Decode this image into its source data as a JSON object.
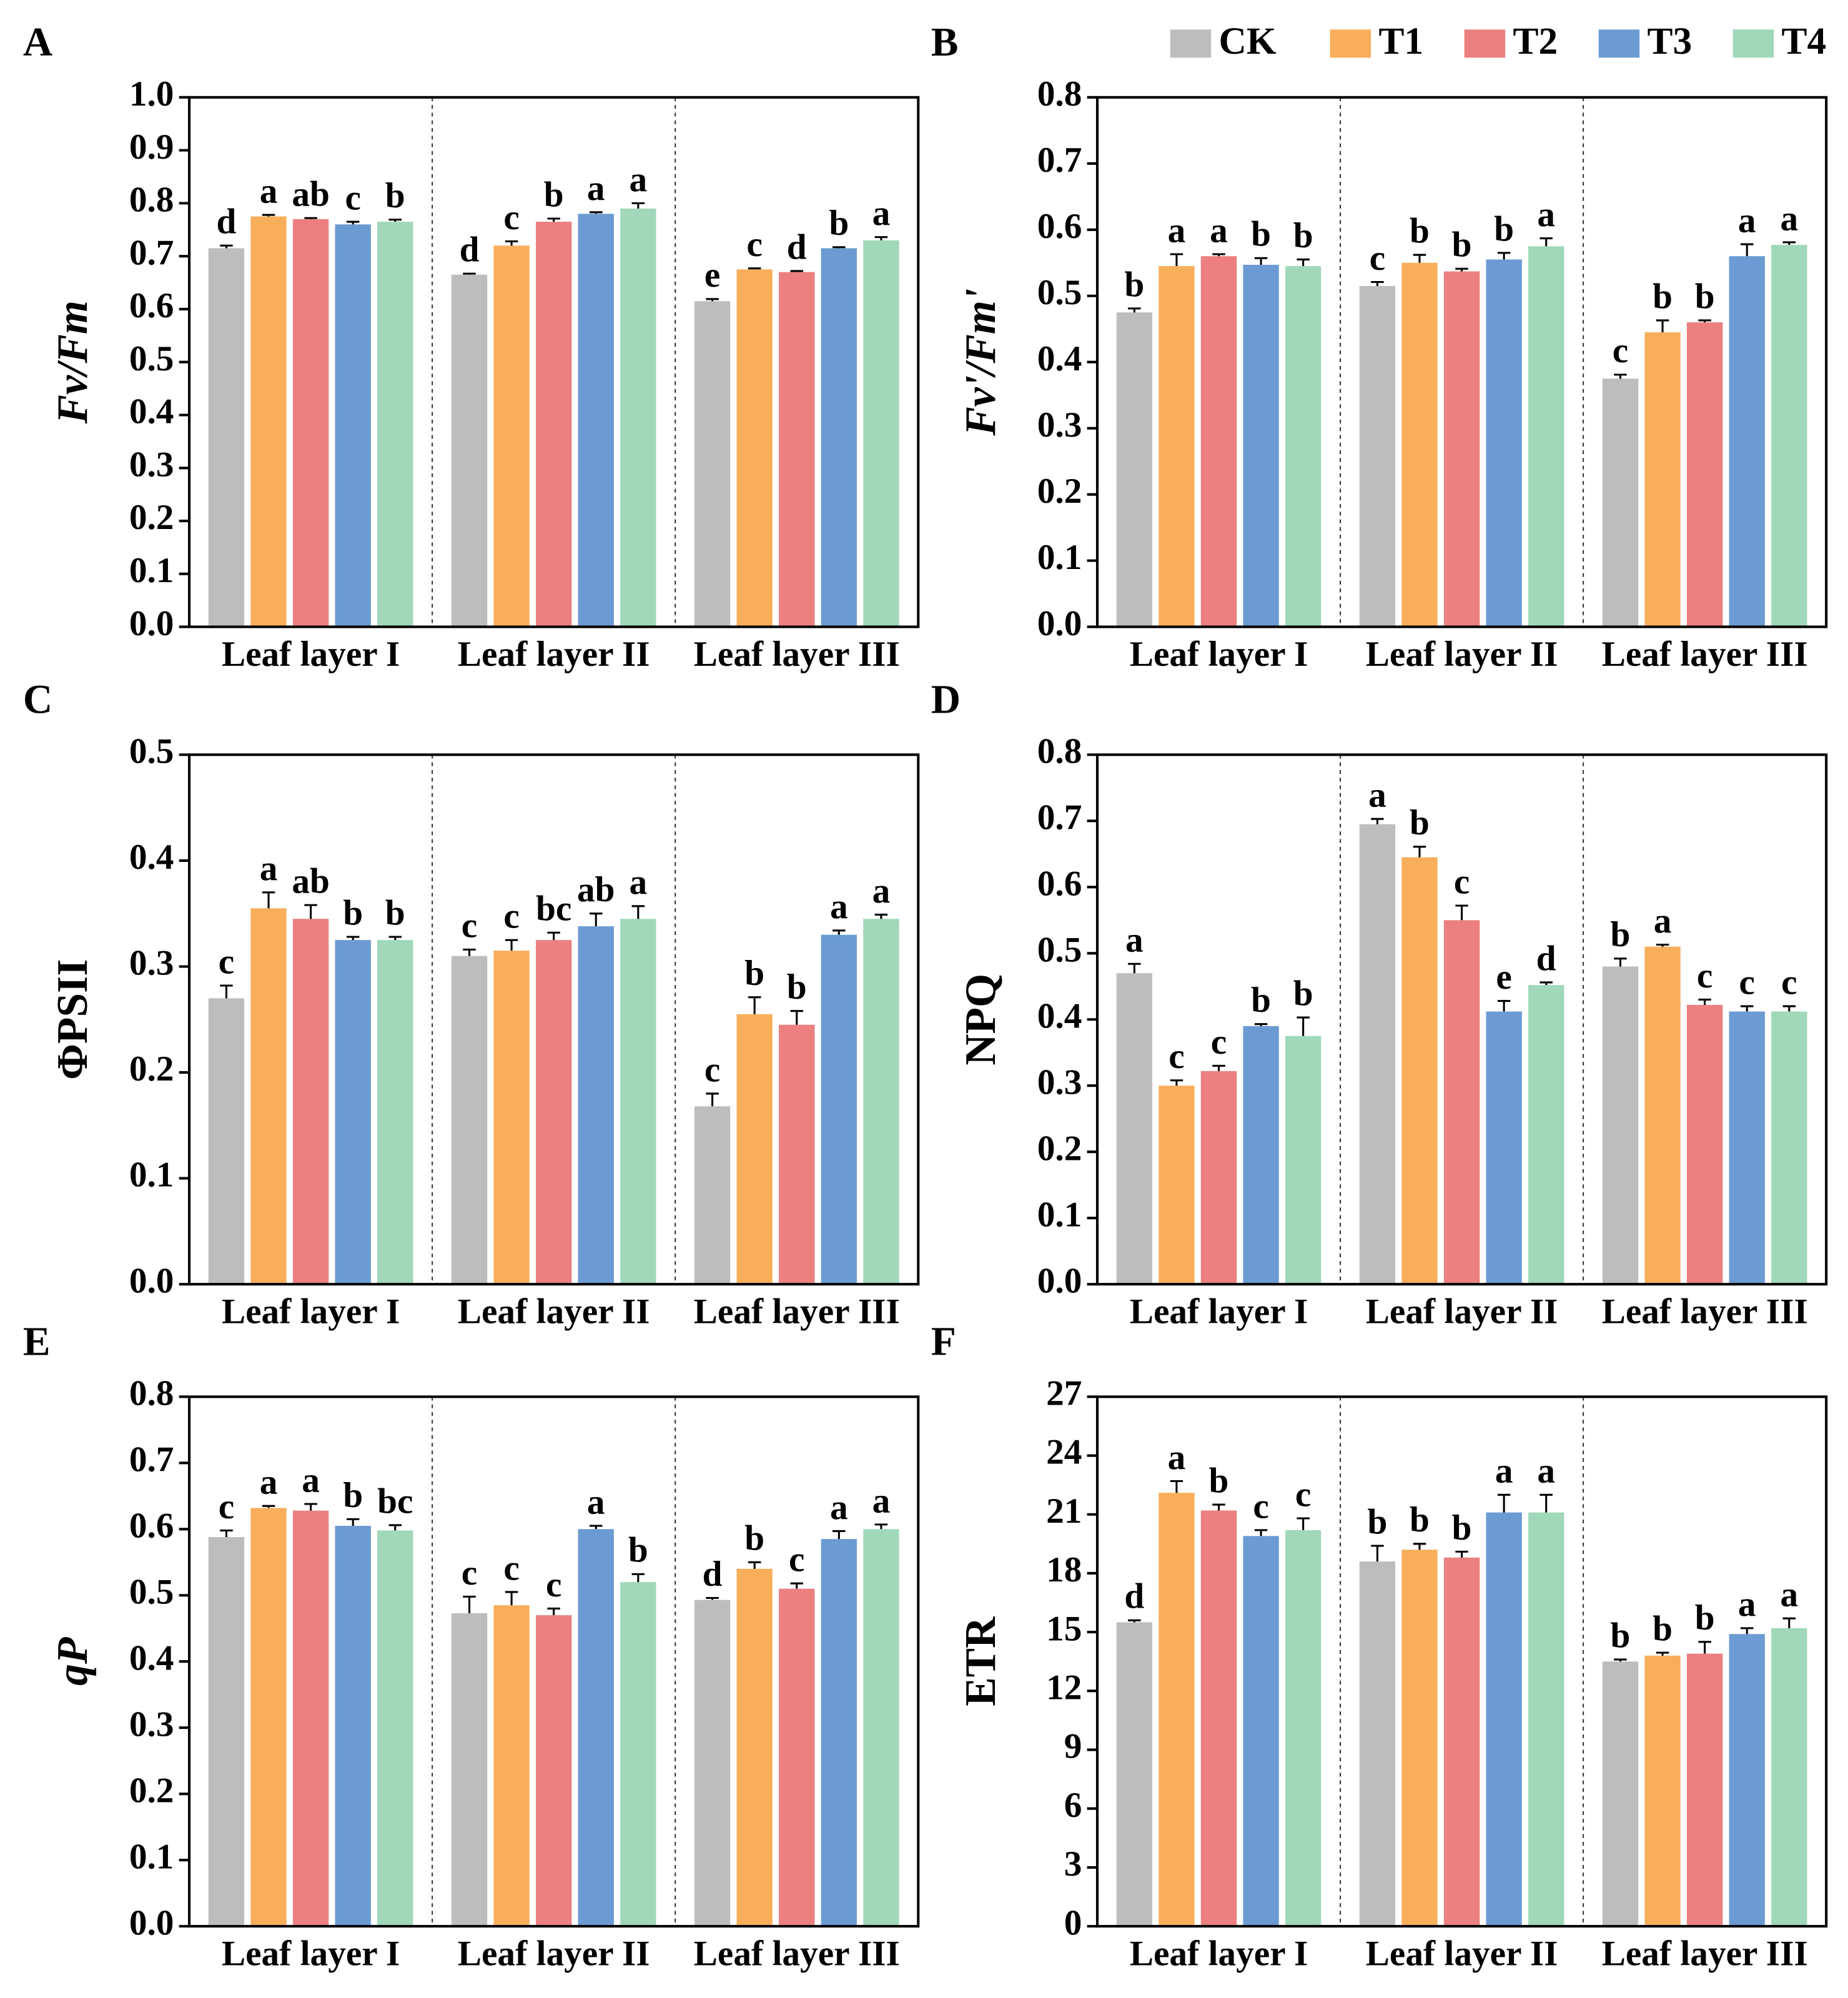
{
  "chart_data": [
    {
      "type": "bar",
      "panel": "A",
      "ylabel": "Fv/Fm",
      "ylabel_italic": true,
      "categories": [
        "Leaf layer I",
        "Leaf layer II",
        "Leaf layer III"
      ],
      "ylim": [
        0,
        1
      ],
      "yticks": [
        {
          "value": 0,
          "label": "0.0"
        },
        0.1,
        0.2,
        0.3,
        0.4,
        0.5,
        0.6,
        0.7,
        0.8,
        0.9,
        {
          "value": 1,
          "label": "1.0"
        }
      ],
      "series": [
        {
          "name": "CK",
          "color": "#bdbdbd",
          "values": [
            0.715,
            0.665,
            0.615
          ],
          "errors": [
            0.005,
            0.002,
            0.004
          ],
          "letters": [
            "d",
            "d",
            "e"
          ]
        },
        {
          "name": "T1",
          "color": "#f8ae5a",
          "values": [
            0.775,
            0.72,
            0.675
          ],
          "errors": [
            0.003,
            0.008,
            0.002
          ],
          "letters": [
            "a",
            "c",
            "c"
          ]
        },
        {
          "name": "T2",
          "color": "#ec7f7f",
          "values": [
            0.77,
            0.765,
            0.67
          ],
          "errors": [
            0.002,
            0.006,
            0.002
          ],
          "letters": [
            "ab",
            "b",
            "d"
          ]
        },
        {
          "name": "T3",
          "color": "#6b9bd2",
          "values": [
            0.76,
            0.78,
            0.715
          ],
          "errors": [
            0.005,
            0.003,
            0.002
          ],
          "letters": [
            "c",
            "a",
            "b"
          ]
        },
        {
          "name": "T4",
          "color": "#a0d8b9",
          "values": [
            0.765,
            0.79,
            0.73
          ],
          "errors": [
            0.004,
            0.01,
            0.006
          ],
          "letters": [
            "b",
            "a",
            "a"
          ]
        }
      ]
    },
    {
      "type": "bar",
      "panel": "B",
      "ylabel": "Fv'/Fm'",
      "ylabel_italic": true,
      "categories": [
        "Leaf layer I",
        "Leaf layer II",
        "Leaf layer III"
      ],
      "ylim": [
        0,
        0.8
      ],
      "yticks": [
        {
          "value": 0,
          "label": "0.0"
        },
        0.1,
        0.2,
        0.3,
        0.4,
        0.5,
        0.6,
        0.7,
        0.8
      ],
      "series": [
        {
          "name": "CK",
          "color": "#bdbdbd",
          "values": [
            0.475,
            0.515,
            0.375
          ],
          "errors": [
            0.006,
            0.006,
            0.006
          ],
          "letters": [
            "b",
            "c",
            "c"
          ]
        },
        {
          "name": "T1",
          "color": "#f8ae5a",
          "values": [
            0.545,
            0.55,
            0.445
          ],
          "errors": [
            0.018,
            0.012,
            0.018
          ],
          "letters": [
            "a",
            "b",
            "b"
          ]
        },
        {
          "name": "T2",
          "color": "#ec7f7f",
          "values": [
            0.56,
            0.537,
            0.46
          ],
          "errors": [
            0.003,
            0.004,
            0.003
          ],
          "letters": [
            "a",
            "b",
            "b"
          ]
        },
        {
          "name": "T3",
          "color": "#6b9bd2",
          "values": [
            0.547,
            0.555,
            0.56
          ],
          "errors": [
            0.01,
            0.01,
            0.018
          ],
          "letters": [
            "b",
            "b",
            "a"
          ]
        },
        {
          "name": "T4",
          "color": "#a0d8b9",
          "values": [
            0.545,
            0.575,
            0.577
          ],
          "errors": [
            0.01,
            0.012,
            0.004
          ],
          "letters": [
            "b",
            "a",
            "a"
          ]
        }
      ]
    },
    {
      "type": "bar",
      "panel": "C",
      "ylabel": "ΦPSII",
      "ylabel_italic": false,
      "categories": [
        "Leaf layer I",
        "Leaf layer II",
        "Leaf layer III"
      ],
      "ylim": [
        0,
        0.5
      ],
      "yticks": [
        {
          "value": 0,
          "label": "0.0"
        },
        0.1,
        0.2,
        0.3,
        0.4,
        0.5
      ],
      "series": [
        {
          "name": "CK",
          "color": "#bdbdbd",
          "values": [
            0.27,
            0.31,
            0.168
          ],
          "errors": [
            0.012,
            0.006,
            0.012
          ],
          "letters": [
            "c",
            "c",
            "c"
          ]
        },
        {
          "name": "T1",
          "color": "#f8ae5a",
          "values": [
            0.355,
            0.315,
            0.255
          ],
          "errors": [
            0.015,
            0.01,
            0.016
          ],
          "letters": [
            "a",
            "c",
            "b"
          ]
        },
        {
          "name": "T2",
          "color": "#ec7f7f",
          "values": [
            0.345,
            0.325,
            0.245
          ],
          "errors": [
            0.013,
            0.007,
            0.013
          ],
          "letters": [
            "ab",
            "bc",
            "b"
          ]
        },
        {
          "name": "T3",
          "color": "#6b9bd2",
          "values": [
            0.325,
            0.338,
            0.33
          ],
          "errors": [
            0.003,
            0.012,
            0.004
          ],
          "letters": [
            "b",
            "ab",
            "a"
          ]
        },
        {
          "name": "T4",
          "color": "#a0d8b9",
          "values": [
            0.325,
            0.345,
            0.345
          ],
          "errors": [
            0.003,
            0.012,
            0.004
          ],
          "letters": [
            "b",
            "a",
            "a"
          ]
        }
      ]
    },
    {
      "type": "bar",
      "panel": "D",
      "ylabel": "NPQ",
      "ylabel_italic": false,
      "categories": [
        "Leaf layer I",
        "Leaf layer II",
        "Leaf layer III"
      ],
      "ylim": [
        0,
        0.8
      ],
      "yticks": [
        {
          "value": 0,
          "label": "0.0"
        },
        0.1,
        0.2,
        0.3,
        0.4,
        0.5,
        0.6,
        0.7,
        0.8
      ],
      "series": [
        {
          "name": "CK",
          "color": "#bdbdbd",
          "values": [
            0.47,
            0.695,
            0.48
          ],
          "errors": [
            0.014,
            0.008,
            0.012
          ],
          "letters": [
            "a",
            "a",
            "b"
          ]
        },
        {
          "name": "T1",
          "color": "#f8ae5a",
          "values": [
            0.3,
            0.645,
            0.51
          ],
          "errors": [
            0.008,
            0.016,
            0.003
          ],
          "letters": [
            "c",
            "b",
            "a"
          ]
        },
        {
          "name": "T2",
          "color": "#ec7f7f",
          "values": [
            0.322,
            0.55,
            0.422
          ],
          "errors": [
            0.008,
            0.022,
            0.008
          ],
          "letters": [
            "c",
            "c",
            "c"
          ]
        },
        {
          "name": "T3",
          "color": "#6b9bd2",
          "values": [
            0.39,
            0.412,
            0.412
          ],
          "errors": [
            0.003,
            0.016,
            0.008
          ],
          "letters": [
            "b",
            "e",
            "c"
          ]
        },
        {
          "name": "T4",
          "color": "#a0d8b9",
          "values": [
            0.375,
            0.452,
            0.412
          ],
          "errors": [
            0.028,
            0.004,
            0.008
          ],
          "letters": [
            "b",
            "d",
            "c"
          ]
        }
      ]
    },
    {
      "type": "bar",
      "panel": "E",
      "ylabel": "qP",
      "ylabel_italic": true,
      "categories": [
        "Leaf layer I",
        "Leaf layer II",
        "Leaf layer III"
      ],
      "ylim": [
        0,
        0.8
      ],
      "yticks": [
        {
          "value": 0,
          "label": "0.0"
        },
        0.1,
        0.2,
        0.3,
        0.4,
        0.5,
        0.6,
        0.7,
        0.8
      ],
      "series": [
        {
          "name": "CK",
          "color": "#bdbdbd",
          "values": [
            0.588,
            0.473,
            0.493
          ],
          "errors": [
            0.01,
            0.025,
            0.003
          ],
          "letters": [
            "c",
            "c",
            "d"
          ]
        },
        {
          "name": "T1",
          "color": "#f8ae5a",
          "values": [
            0.632,
            0.485,
            0.54
          ],
          "errors": [
            0.003,
            0.02,
            0.01
          ],
          "letters": [
            "a",
            "c",
            "b"
          ]
        },
        {
          "name": "T2",
          "color": "#ec7f7f",
          "values": [
            0.628,
            0.47,
            0.51
          ],
          "errors": [
            0.01,
            0.01,
            0.008
          ],
          "letters": [
            "a",
            "c",
            "c"
          ]
        },
        {
          "name": "T3",
          "color": "#6b9bd2",
          "values": [
            0.605,
            0.6,
            0.585
          ],
          "errors": [
            0.01,
            0.005,
            0.012
          ],
          "letters": [
            "b",
            "a",
            "a"
          ]
        },
        {
          "name": "T4",
          "color": "#a0d8b9",
          "values": [
            0.598,
            0.52,
            0.6
          ],
          "errors": [
            0.008,
            0.012,
            0.007
          ],
          "letters": [
            "bc",
            "b",
            "a"
          ]
        }
      ]
    },
    {
      "type": "bar",
      "panel": "F",
      "ylabel": "ETR",
      "ylabel_italic": false,
      "categories": [
        "Leaf layer I",
        "Leaf layer II",
        "Leaf layer III"
      ],
      "ylim": [
        0,
        27
      ],
      "yticks": [
        0,
        3,
        6,
        9,
        12,
        15,
        18,
        21,
        24,
        27
      ],
      "series": [
        {
          "name": "CK",
          "color": "#bdbdbd",
          "values": [
            15.5,
            18.6,
            13.5
          ],
          "errors": [
            0.1,
            0.8,
            0.1
          ],
          "letters": [
            "d",
            "b",
            "b"
          ]
        },
        {
          "name": "T1",
          "color": "#f8ae5a",
          "values": [
            22.1,
            19.2,
            13.8
          ],
          "errors": [
            0.6,
            0.3,
            0.15
          ],
          "letters": [
            "a",
            "b",
            "b"
          ]
        },
        {
          "name": "T2",
          "color": "#ec7f7f",
          "values": [
            21.2,
            18.8,
            13.9
          ],
          "errors": [
            0.3,
            0.3,
            0.6
          ],
          "letters": [
            "b",
            "b",
            "b"
          ]
        },
        {
          "name": "T3",
          "color": "#6b9bd2",
          "values": [
            19.9,
            21.1,
            14.9
          ],
          "errors": [
            0.3,
            0.9,
            0.3
          ],
          "letters": [
            "c",
            "a",
            "a"
          ]
        },
        {
          "name": "T4",
          "color": "#a0d8b9",
          "values": [
            20.2,
            21.1,
            15.2
          ],
          "errors": [
            0.6,
            0.9,
            0.5
          ],
          "letters": [
            "c",
            "a",
            "a"
          ]
        }
      ]
    }
  ]
}
